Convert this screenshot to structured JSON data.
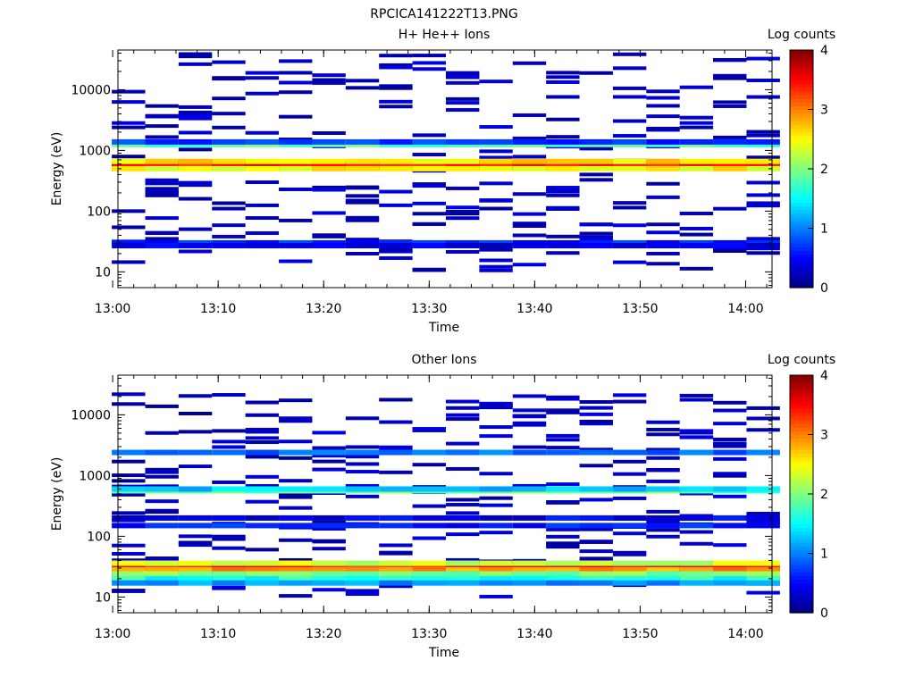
{
  "title": "RPCICA141222T13.PNG",
  "chart_data": [
    {
      "type": "heatmap",
      "title": "H+ He++ Ions",
      "xlabel": "Time",
      "ylabel": "Energy (eV)",
      "colorbar_label": "Log counts",
      "y_scale": "log",
      "ylim": [
        5.5,
        45000
      ],
      "xlim": [
        "13:00:30",
        "14:02:30"
      ],
      "x_ticks": [
        "13:00",
        "13:10",
        "13:20",
        "13:30",
        "13:40",
        "13:50",
        "14:00"
      ],
      "y_ticks": [
        "10",
        "100",
        "1000",
        "10000"
      ],
      "colorbar_ticks": [
        "0",
        "1",
        "2",
        "3",
        "4"
      ],
      "color_range": [
        0,
        4
      ],
      "time_columns": [
        "13:01:30",
        "13:04:40",
        "13:07:50",
        "13:11:00",
        "13:14:10",
        "13:17:20",
        "13:20:30",
        "13:23:40",
        "13:26:50",
        "13:30:00",
        "13:33:10",
        "13:36:20",
        "13:39:30",
        "13:42:40",
        "13:45:50",
        "13:49:00",
        "13:52:10",
        "13:55:20",
        "13:58:30",
        "14:01:40"
      ],
      "persistent_bands": [
        {
          "energy": 600,
          "value": 3.7
        },
        {
          "energy": 540,
          "value": 3.5
        },
        {
          "energy": 660,
          "value": 2.6
        },
        {
          "energy": 500,
          "value": 2.5
        },
        {
          "energy": 1250,
          "value": 1.8
        },
        {
          "energy": 1380,
          "value": 0.7
        },
        {
          "energy": 30,
          "value": 0.6
        },
        {
          "energy": 27,
          "value": 0.4
        }
      ],
      "sparse_counts": {
        "energy_range": [
          10,
          40000
        ],
        "typical_value": 0.1
      }
    },
    {
      "type": "heatmap",
      "title": "Other Ions",
      "xlabel": "Time",
      "ylabel": "Energy (eV)",
      "colorbar_label": "Log counts",
      "y_scale": "log",
      "ylim": [
        5.5,
        45000
      ],
      "xlim": [
        "13:00:30",
        "14:02:30"
      ],
      "x_ticks": [
        "13:00",
        "13:10",
        "13:20",
        "13:30",
        "13:40",
        "13:50",
        "14:00"
      ],
      "y_ticks": [
        "10",
        "100",
        "1000",
        "10000"
      ],
      "colorbar_ticks": [
        "0",
        "1",
        "2",
        "3",
        "4"
      ],
      "color_range": [
        0,
        4
      ],
      "time_columns": [
        "13:01:30",
        "13:04:40",
        "13:07:50",
        "13:11:00",
        "13:14:10",
        "13:17:20",
        "13:20:30",
        "13:23:40",
        "13:26:50",
        "13:30:00",
        "13:33:10",
        "13:36:20",
        "13:39:30",
        "13:42:40",
        "13:45:50",
        "13:49:00",
        "13:52:10",
        "13:55:20",
        "13:58:30",
        "14:01:40"
      ],
      "persistent_bands": [
        {
          "energy": 32,
          "value": 3.4
        },
        {
          "energy": 28,
          "value": 2.9
        },
        {
          "energy": 36,
          "value": 2.3
        },
        {
          "energy": 24,
          "value": 2.0
        },
        {
          "energy": 20,
          "value": 1.6
        },
        {
          "energy": 17,
          "value": 1.1
        },
        {
          "energy": 560,
          "value": 1.9
        },
        {
          "energy": 600,
          "value": 1.3
        },
        {
          "energy": 150,
          "value": 0.6
        },
        {
          "energy": 200,
          "value": 0.45
        },
        {
          "energy": 2400,
          "value": 0.9
        }
      ],
      "sparse_counts": {
        "energy_range": [
          10,
          22000
        ],
        "typical_value": 0.1
      }
    }
  ]
}
